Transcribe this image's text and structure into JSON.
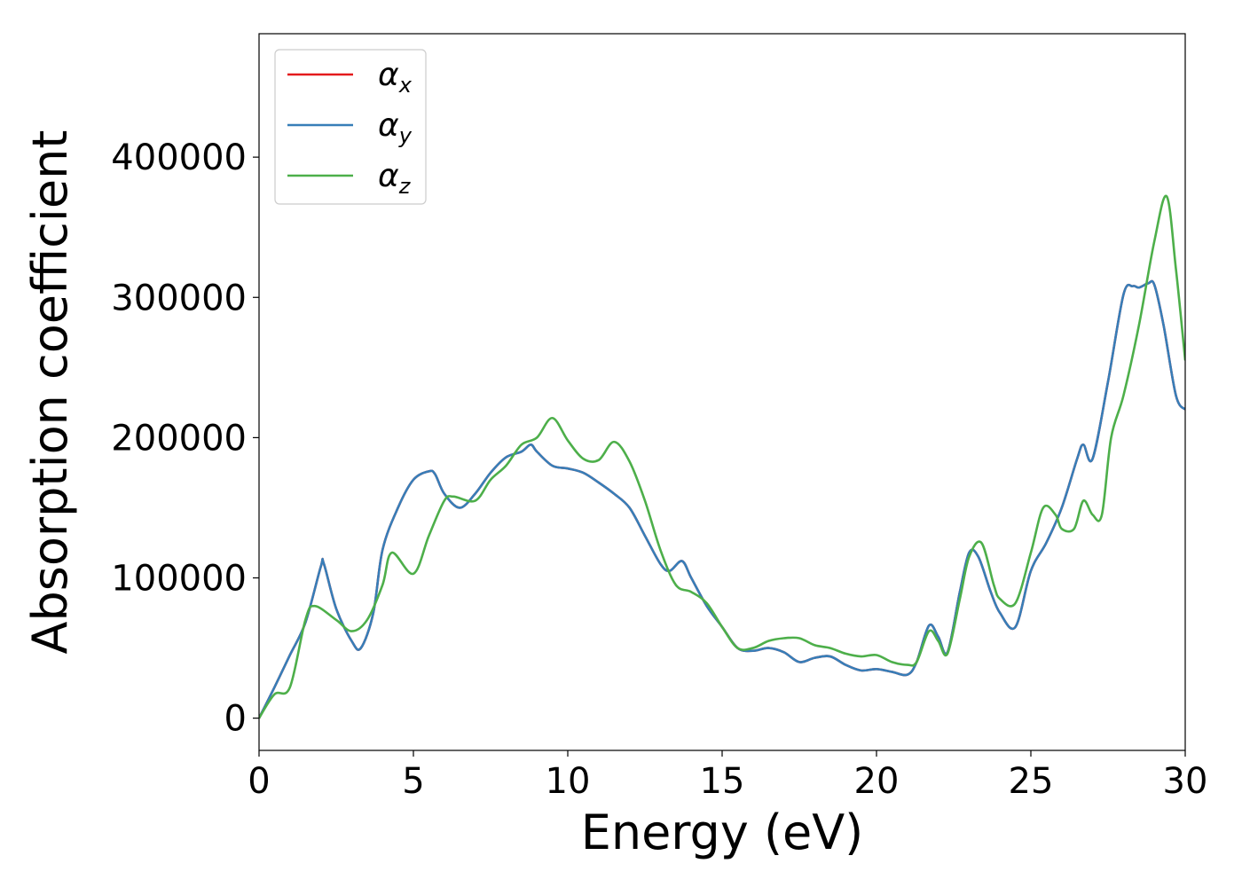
{
  "chart_data": {
    "type": "line",
    "title": "",
    "xlabel": "Energy (eV)",
    "ylabel": "Absorption coefficient",
    "xlim": [
      0,
      30
    ],
    "ylim": [
      -23000,
      488000
    ],
    "xticks": [
      0,
      5,
      10,
      15,
      20,
      25,
      30
    ],
    "xtick_labels": [
      "0",
      "5",
      "10",
      "15",
      "20",
      "25",
      "30"
    ],
    "yticks": [
      0,
      100000,
      200000,
      300000,
      400000
    ],
    "ytick_labels": [
      "0",
      "100000",
      "200000",
      "300000",
      "400000"
    ],
    "grid": false,
    "legend_position": "top-left",
    "series": [
      {
        "name": "αx",
        "symbol": "α",
        "sub": "x",
        "color": "#e41a1c",
        "x": [
          0,
          0.5,
          1,
          1.5,
          2,
          2.1,
          2.5,
          3,
          3.3,
          3.7,
          4,
          4.5,
          5,
          5.5,
          5.7,
          6,
          6.5,
          7,
          7.5,
          8,
          8.5,
          8.8,
          9,
          9.5,
          10,
          10.5,
          11,
          11.5,
          12,
          12.5,
          13,
          13.3,
          13.7,
          14,
          14.5,
          15,
          15.5,
          16,
          16.5,
          17,
          17.5,
          18,
          18.5,
          19,
          19.5,
          20,
          20.5,
          21,
          21.3,
          21.7,
          22,
          22.3,
          22.7,
          23,
          23.3,
          23.7,
          24,
          24.5,
          25,
          25.5,
          26,
          26.5,
          26.7,
          27,
          27.5,
          28,
          28.3,
          28.5,
          28.8,
          29,
          29.3,
          29.7,
          30
        ],
        "values": [
          0,
          22000,
          45000,
          68000,
          108000,
          110000,
          78000,
          55000,
          50000,
          75000,
          120000,
          150000,
          170000,
          176000,
          174000,
          160000,
          150000,
          160000,
          175000,
          186000,
          190000,
          195000,
          190000,
          180000,
          178000,
          175000,
          168000,
          160000,
          150000,
          130000,
          110000,
          105000,
          112000,
          100000,
          80000,
          65000,
          50000,
          48000,
          50000,
          47000,
          40000,
          43000,
          44000,
          38000,
          34000,
          35000,
          33000,
          31000,
          40000,
          66000,
          58000,
          47000,
          90000,
          118000,
          115000,
          90000,
          75000,
          65000,
          105000,
          125000,
          150000,
          185000,
          195000,
          185000,
          240000,
          302000,
          308000,
          307000,
          310000,
          309000,
          280000,
          230000,
          220000
        ]
      },
      {
        "name": "αy",
        "symbol": "α",
        "sub": "y",
        "color": "#377eb8",
        "x": [
          0,
          0.5,
          1,
          1.5,
          2,
          2.1,
          2.5,
          3,
          3.3,
          3.7,
          4,
          4.5,
          5,
          5.5,
          5.7,
          6,
          6.5,
          7,
          7.5,
          8,
          8.5,
          8.8,
          9,
          9.5,
          10,
          10.5,
          11,
          11.5,
          12,
          12.5,
          13,
          13.3,
          13.7,
          14,
          14.5,
          15,
          15.5,
          16,
          16.5,
          17,
          17.5,
          18,
          18.5,
          19,
          19.5,
          20,
          20.5,
          21,
          21.3,
          21.7,
          22,
          22.3,
          22.7,
          23,
          23.3,
          23.7,
          24,
          24.5,
          25,
          25.5,
          26,
          26.5,
          26.7,
          27,
          27.5,
          28,
          28.3,
          28.5,
          28.8,
          29,
          29.3,
          29.7,
          30
        ],
        "values": [
          0,
          22000,
          45000,
          68000,
          108000,
          110000,
          78000,
          55000,
          50000,
          75000,
          120000,
          150000,
          170000,
          176000,
          174000,
          160000,
          150000,
          160000,
          175000,
          186000,
          190000,
          195000,
          190000,
          180000,
          178000,
          175000,
          168000,
          160000,
          150000,
          130000,
          110000,
          105000,
          112000,
          100000,
          80000,
          65000,
          50000,
          48000,
          50000,
          47000,
          40000,
          43000,
          44000,
          38000,
          34000,
          35000,
          33000,
          31000,
          40000,
          66000,
          58000,
          47000,
          90000,
          118000,
          115000,
          90000,
          75000,
          65000,
          105000,
          125000,
          150000,
          185000,
          195000,
          185000,
          240000,
          302000,
          308000,
          307000,
          310000,
          309000,
          280000,
          230000,
          220000
        ]
      },
      {
        "name": "αz",
        "symbol": "α",
        "sub": "z",
        "color": "#4daf4a",
        "x": [
          0,
          0.5,
          1,
          1.5,
          1.8,
          2.5,
          3,
          3.5,
          4,
          4.3,
          5,
          5.5,
          6,
          6.3,
          7,
          7.5,
          8,
          8.5,
          9,
          9.5,
          10,
          10.5,
          11,
          11.5,
          12,
          12.5,
          13,
          13.5,
          14,
          14.5,
          15,
          15.5,
          16,
          16.5,
          17,
          17.5,
          18,
          18.5,
          19,
          19.5,
          20,
          20.5,
          21,
          21.3,
          21.7,
          22,
          22.3,
          22.7,
          23,
          23.4,
          23.8,
          24,
          24.5,
          25,
          25.4,
          25.8,
          26,
          26.4,
          26.7,
          27,
          27.3,
          27.6,
          28,
          28.5,
          29,
          29.4,
          29.7,
          30
        ],
        "values": [
          0,
          17000,
          22000,
          70000,
          80000,
          70000,
          62000,
          70000,
          95000,
          118000,
          103000,
          130000,
          155000,
          158000,
          155000,
          170000,
          180000,
          195000,
          200000,
          214000,
          198000,
          185000,
          184000,
          197000,
          183000,
          155000,
          120000,
          95000,
          90000,
          82000,
          65000,
          50000,
          50000,
          55000,
          57000,
          57000,
          52000,
          50000,
          46000,
          44000,
          45000,
          40000,
          38000,
          40000,
          62000,
          55000,
          46000,
          85000,
          115000,
          125000,
          95000,
          85000,
          82000,
          118000,
          150000,
          145000,
          135000,
          135000,
          155000,
          145000,
          145000,
          200000,
          230000,
          280000,
          340000,
          372000,
          320000,
          255000
        ]
      }
    ]
  }
}
